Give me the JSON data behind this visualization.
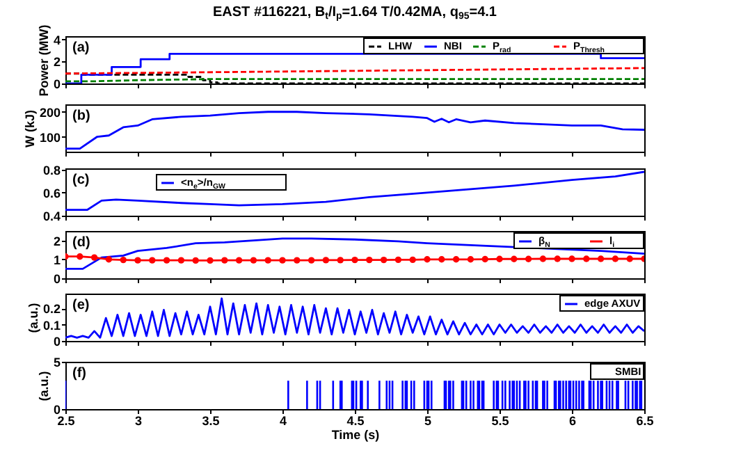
{
  "chart_data": [
    {
      "type": "line",
      "title": "EAST #116221, B$_{t}$/I$_{p}$=1.64 T/0.42MA, q$_{95}$=4.1",
      "ylabel": "Power (MW)",
      "annotations": [
        "(a)"
      ],
      "legend": "top right",
      "xlim": [
        2.5,
        6.5
      ],
      "xticks": [
        2.5,
        3,
        3.5,
        4,
        4.5,
        5,
        5.5,
        6,
        6.5
      ],
      "ylim": [
        0,
        4.3
      ],
      "yticks": [
        0,
        2,
        4
      ],
      "tick_labels": "y",
      "series": [
        {
          "name": "LHW",
          "type": "step",
          "color": "#000000",
          "line_style": "dashed",
          "x": [
            2.5,
            2.62,
            3.35,
            3.45,
            3.5,
            3.55,
            6.5
          ],
          "values": [
            0.9,
            0.8,
            0.6,
            0.3,
            0.1,
            0,
            0
          ]
        },
        {
          "name": "NBI",
          "type": "step",
          "color": "#0000ff",
          "line_style": "solid",
          "x": [
            2.5,
            2.61,
            2.82,
            3.02,
            3.22,
            6.2,
            6.5
          ],
          "values": [
            0,
            0.8,
            1.5,
            2.2,
            2.7,
            2.3,
            2.3
          ]
        },
        {
          "name": "P$_{rad}$",
          "color": "#008000",
          "line_style": "dashed",
          "x": [
            2.5,
            2.7,
            3.0,
            3.5,
            4.5,
            5.5,
            6.5
          ],
          "values": [
            0.2,
            0.2,
            0.3,
            0.4,
            0.4,
            0.4,
            0.4
          ]
        },
        {
          "name": "P$_{Thresh}$",
          "color": "#ff0000",
          "line_style": "dashed",
          "x": [
            2.5,
            6.5
          ],
          "values": [
            0.9,
            1.4
          ]
        }
      ]
    },
    {
      "type": "line",
      "ylabel": "W (kJ)",
      "annotations": [
        "(b)"
      ],
      "xlim": [
        2.5,
        6.5
      ],
      "xticks": [
        2.5,
        3,
        3.5,
        4,
        4.5,
        5,
        5.5,
        6,
        6.5
      ],
      "ylim": [
        40,
        230
      ],
      "yticks": [
        100,
        200
      ],
      "tick_labels": "y",
      "series": [
        {
          "color": "#0000ff",
          "line_style": "solid",
          "x": [
            2.5,
            2.6,
            2.72,
            2.8,
            2.9,
            3.0,
            3.1,
            3.3,
            3.5,
            3.7,
            3.9,
            4.1,
            4.3,
            4.6,
            4.9,
            5.0,
            5.05,
            5.1,
            5.15,
            5.2,
            5.3,
            5.4,
            5.6,
            5.8,
            6.0,
            6.2,
            6.35,
            6.5
          ],
          "values": [
            52,
            52,
            100,
            105,
            138,
            145,
            170,
            180,
            185,
            195,
            200,
            200,
            195,
            190,
            180,
            175,
            160,
            172,
            158,
            170,
            158,
            165,
            155,
            150,
            145,
            145,
            130,
            128
          ]
        }
      ]
    },
    {
      "type": "line",
      "annotations": [
        "(c)"
      ],
      "legend": "top left",
      "xlim": [
        2.5,
        6.5
      ],
      "xticks": [
        2.5,
        3,
        3.5,
        4,
        4.5,
        5,
        5.5,
        6,
        6.5
      ],
      "ylim": [
        0.4,
        0.81
      ],
      "yticks": [
        0.4,
        0.6,
        0.8
      ],
      "tick_labels": "y",
      "series": [
        {
          "name": "<n$_{e}$>/n$_{GW}$",
          "color": "#0000ff",
          "line_style": "solid",
          "x": [
            2.5,
            2.65,
            2.75,
            2.85,
            3.0,
            3.3,
            3.5,
            3.7,
            4.0,
            4.3,
            4.6,
            5.0,
            5.3,
            5.6,
            6.0,
            6.3,
            6.5
          ],
          "values": [
            0.45,
            0.45,
            0.53,
            0.54,
            0.53,
            0.51,
            0.5,
            0.49,
            0.5,
            0.52,
            0.56,
            0.6,
            0.63,
            0.66,
            0.71,
            0.74,
            0.78
          ]
        }
      ]
    },
    {
      "type": "line",
      "annotations": [
        "(d)"
      ],
      "legend": "top right",
      "xlim": [
        2.5,
        6.5
      ],
      "xticks": [
        2.5,
        3,
        3.5,
        4,
        4.5,
        5,
        5.5,
        6,
        6.5
      ],
      "ylim": [
        0,
        2.5
      ],
      "yticks": [
        0,
        1,
        2
      ],
      "tick_labels": "y",
      "series": [
        {
          "name": "β$_{N}$",
          "color": "#0000ff",
          "line_style": "solid",
          "x": [
            2.5,
            2.62,
            2.75,
            2.9,
            3.0,
            3.2,
            3.4,
            3.6,
            3.8,
            4.0,
            4.2,
            4.5,
            4.8,
            5.0,
            5.3,
            5.6,
            5.9,
            6.2,
            6.5
          ],
          "values": [
            0.5,
            0.5,
            1.1,
            1.2,
            1.45,
            1.6,
            1.85,
            1.9,
            2.0,
            2.1,
            2.1,
            2.05,
            1.95,
            1.85,
            1.75,
            1.65,
            1.55,
            1.45,
            1.3
          ]
        },
        {
          "name": "l$_{i}$",
          "color": "#ff0000",
          "line_style": "solid",
          "marker": "circle",
          "x": [
            2.5,
            2.6,
            2.7,
            2.8,
            2.9,
            3.0,
            3.1,
            3.2,
            3.3,
            3.4,
            3.5,
            3.6,
            3.7,
            3.8,
            3.9,
            4.0,
            4.1,
            4.2,
            4.3,
            4.4,
            4.5,
            4.6,
            4.7,
            4.8,
            4.9,
            5.0,
            5.1,
            5.2,
            5.3,
            5.4,
            5.5,
            5.6,
            5.7,
            5.8,
            5.9,
            6.0,
            6.1,
            6.2,
            6.3,
            6.4,
            6.5
          ],
          "values": [
            1.15,
            1.15,
            1.1,
            1.0,
            0.97,
            0.95,
            0.95,
            0.95,
            0.95,
            0.94,
            0.94,
            0.95,
            0.95,
            0.95,
            0.95,
            0.95,
            0.95,
            0.95,
            0.96,
            0.96,
            0.97,
            0.97,
            0.97,
            0.98,
            0.98,
            1.0,
            1.0,
            1.0,
            1.0,
            1.01,
            1.02,
            1.02,
            1.02,
            1.03,
            1.03,
            1.03,
            1.03,
            1.03,
            1.03,
            1.03,
            1.03
          ]
        }
      ]
    },
    {
      "type": "line",
      "ylabel": "(a.u.)",
      "annotations": [
        "(e)"
      ],
      "legend": "top right",
      "xlim": [
        2.5,
        6.5
      ],
      "xticks": [
        2.5,
        3,
        3.5,
        4,
        4.5,
        5,
        5.5,
        6,
        6.5
      ],
      "ylim": [
        0,
        0.29
      ],
      "yticks": [
        0,
        0.1,
        0.2
      ],
      "tick_labels": "y",
      "series": [
        {
          "name": "edge AXUV",
          "color": "#0000ff",
          "line_style": "solid",
          "x": [
            2.5,
            2.54,
            2.58,
            2.62,
            2.66,
            2.7,
            2.74,
            2.78,
            2.82,
            2.86,
            2.9,
            2.94,
            2.98,
            3.02,
            3.06,
            3.1,
            3.14,
            3.18,
            3.22,
            3.26,
            3.3,
            3.34,
            3.38,
            3.42,
            3.46,
            3.5,
            3.54,
            3.58,
            3.62,
            3.66,
            3.7,
            3.74,
            3.78,
            3.82,
            3.86,
            3.9,
            3.94,
            3.98,
            4.02,
            4.06,
            4.1,
            4.14,
            4.18,
            4.22,
            4.26,
            4.3,
            4.34,
            4.38,
            4.42,
            4.46,
            4.5,
            4.54,
            4.58,
            4.62,
            4.66,
            4.7,
            4.74,
            4.78,
            4.82,
            4.86,
            4.9,
            4.94,
            4.98,
            5.02,
            5.06,
            5.1,
            5.14,
            5.18,
            5.22,
            5.26,
            5.3,
            5.34,
            5.38,
            5.42,
            5.46,
            5.5,
            5.54,
            5.58,
            5.62,
            5.66,
            5.7,
            5.74,
            5.78,
            5.82,
            5.86,
            5.9,
            5.94,
            5.98,
            6.02,
            6.06,
            6.1,
            6.14,
            6.18,
            6.22,
            6.26,
            6.3,
            6.34,
            6.38,
            6.42,
            6.46,
            6.5
          ],
          "values": [
            0.02,
            0.03,
            0.02,
            0.03,
            0.02,
            0.06,
            0.02,
            0.14,
            0.03,
            0.16,
            0.03,
            0.17,
            0.03,
            0.16,
            0.03,
            0.18,
            0.03,
            0.19,
            0.03,
            0.17,
            0.04,
            0.18,
            0.04,
            0.16,
            0.04,
            0.21,
            0.04,
            0.26,
            0.04,
            0.23,
            0.04,
            0.22,
            0.05,
            0.23,
            0.04,
            0.22,
            0.05,
            0.21,
            0.04,
            0.22,
            0.05,
            0.21,
            0.04,
            0.22,
            0.05,
            0.2,
            0.04,
            0.2,
            0.05,
            0.19,
            0.04,
            0.18,
            0.05,
            0.19,
            0.04,
            0.17,
            0.05,
            0.18,
            0.04,
            0.16,
            0.05,
            0.15,
            0.04,
            0.15,
            0.04,
            0.13,
            0.04,
            0.12,
            0.04,
            0.11,
            0.04,
            0.1,
            0.04,
            0.1,
            0.04,
            0.1,
            0.05,
            0.1,
            0.05,
            0.09,
            0.05,
            0.1,
            0.05,
            0.09,
            0.05,
            0.1,
            0.05,
            0.09,
            0.05,
            0.1,
            0.05,
            0.09,
            0.05,
            0.1,
            0.05,
            0.09,
            0.05,
            0.1,
            0.05,
            0.09,
            0.06
          ]
        }
      ]
    },
    {
      "type": "bar",
      "ylabel": "(a.u.)",
      "xlabel": "Time (s)",
      "annotations": [
        "(f)"
      ],
      "legend": "top right",
      "xlim": [
        2.5,
        6.5
      ],
      "xticks": [
        2.5,
        3,
        3.5,
        4,
        4.5,
        5,
        5.5,
        6,
        6.5
      ],
      "ylim": [
        0,
        5
      ],
      "yticks": [
        0,
        5
      ],
      "series": [
        {
          "name": "SMBI",
          "color": "#0000ff",
          "x": [
            2.5,
            4.04,
            4.17,
            4.24,
            4.26,
            4.35,
            4.4,
            4.41,
            4.48,
            4.49,
            4.51,
            4.54,
            4.55,
            4.59,
            4.67,
            4.72,
            4.74,
            4.76,
            4.83,
            4.85,
            4.86,
            4.89,
            4.91,
            4.98,
            5.0,
            5.01,
            5.03,
            5.12,
            5.13,
            5.15,
            5.16,
            5.18,
            5.24,
            5.25,
            5.27,
            5.3,
            5.32,
            5.35,
            5.36,
            5.38,
            5.39,
            5.46,
            5.48,
            5.49,
            5.52,
            5.54,
            5.57,
            5.59,
            5.6,
            5.62,
            5.64,
            5.67,
            5.68,
            5.7,
            5.73,
            5.75,
            5.76,
            5.8,
            5.81,
            5.83,
            5.88,
            5.89,
            5.91,
            5.92,
            5.94,
            5.96,
            5.98,
            5.99,
            6.01,
            6.03,
            6.05,
            6.07,
            6.08,
            6.12,
            6.13,
            6.15,
            6.18,
            6.2,
            6.21,
            6.24,
            6.26,
            6.28,
            6.31,
            6.32,
            6.37,
            6.39,
            6.42,
            6.44,
            6.45,
            6.47,
            6.48
          ],
          "values": [
            3,
            3,
            3,
            3,
            3,
            3,
            3,
            3,
            3,
            3,
            3,
            3,
            3,
            3,
            3,
            3,
            3,
            3,
            3,
            3,
            3,
            3,
            3,
            3,
            3,
            3,
            3,
            3,
            3,
            3,
            3,
            3,
            3,
            3,
            3,
            3,
            3,
            3,
            3,
            3,
            3,
            3,
            3,
            3,
            3,
            3,
            3,
            3,
            3,
            3,
            3,
            3,
            3,
            3,
            3,
            3,
            3,
            3,
            3,
            3,
            3,
            3,
            3,
            3,
            3,
            3,
            3,
            3,
            3,
            3,
            3,
            3,
            3,
            3,
            3,
            3,
            3,
            3,
            3,
            3,
            3,
            3,
            3,
            3,
            3,
            3,
            3,
            3,
            3,
            3,
            3
          ]
        }
      ]
    }
  ]
}
